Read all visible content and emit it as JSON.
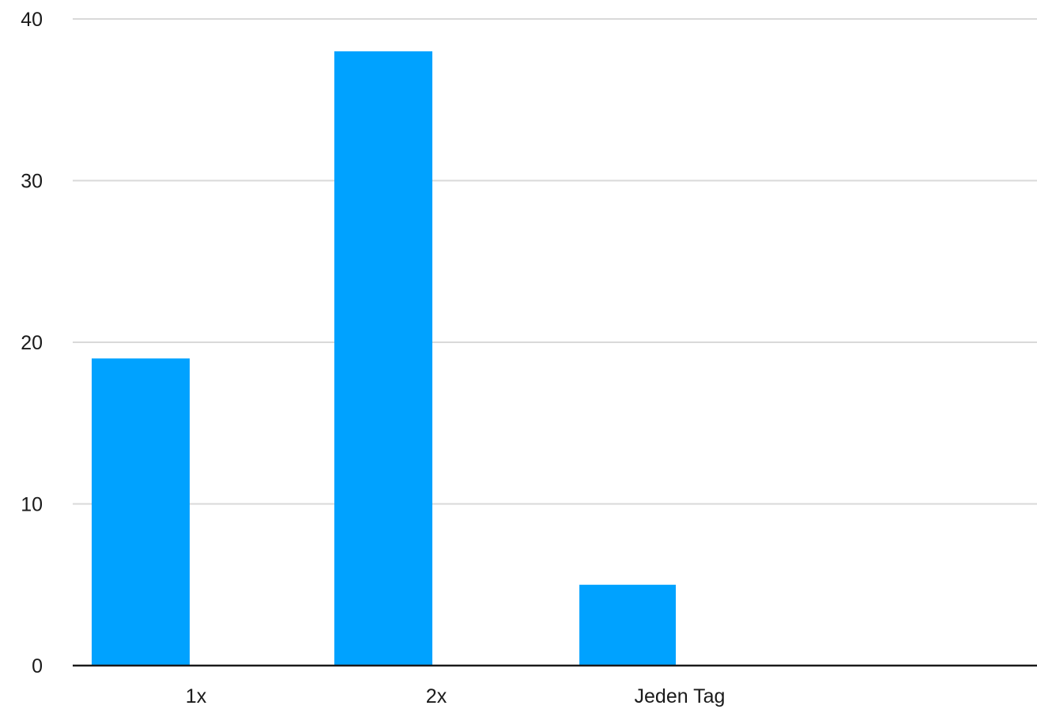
{
  "chart_data": {
    "type": "bar",
    "categories": [
      "1x",
      "2x",
      "Jeden Tag"
    ],
    "values": [
      19,
      38,
      5
    ],
    "ylim": [
      0,
      40
    ],
    "yticks": [
      0,
      10,
      20,
      30,
      40
    ],
    "xlabel": "",
    "ylabel": "",
    "grid": true,
    "legend": "none",
    "colors": {
      "bar": "#00A2FF",
      "grid": "#d9d9d9",
      "baseline": "#1a1a1a",
      "text": "#1a1a1a"
    }
  }
}
